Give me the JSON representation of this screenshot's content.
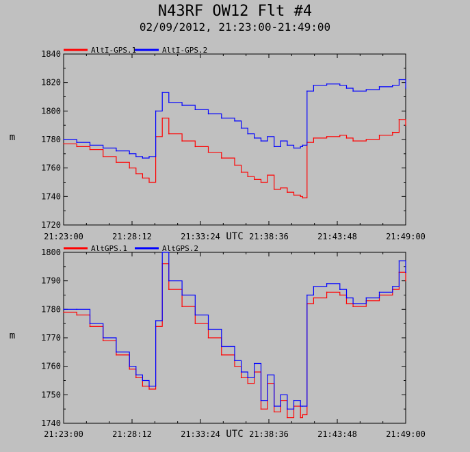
{
  "title": "N43RF OW12 Flt #4",
  "subtitle": "02/09/2012, 21:23:00-21:49:00",
  "colors": {
    "background": "#c0c0c0",
    "series1": "#ff0000",
    "series2": "#0000ff",
    "axis": "#000000"
  },
  "chart_data": [
    {
      "type": "line",
      "xlabel": "UTC",
      "ylabel": "m",
      "xlim": [
        "21:23:00",
        "21:49:00"
      ],
      "xticks": [
        "21:23:00",
        "21:28:12",
        "21:33:24",
        "21:38:36",
        "21:43:48",
        "21:49:00"
      ],
      "ylim": [
        1720,
        1840
      ],
      "yticks": [
        "1720",
        "1740",
        "1760",
        "1780",
        "1800",
        "1820",
        "1840"
      ],
      "grid": false,
      "legend_position": "top-left",
      "series": [
        {
          "name": "AltI-GPS.1",
          "color": "#ff0000",
          "x": [
            "21:23:00",
            "21:24:00",
            "21:25:00",
            "21:26:00",
            "21:27:00",
            "21:28:00",
            "21:28:30",
            "21:29:00",
            "21:29:30",
            "21:30:00",
            "21:30:30",
            "21:31:00",
            "21:32:00",
            "21:33:00",
            "21:34:00",
            "21:35:00",
            "21:36:00",
            "21:36:30",
            "21:37:00",
            "21:37:30",
            "21:38:00",
            "21:38:30",
            "21:39:00",
            "21:39:30",
            "21:40:00",
            "21:40:30",
            "21:41:00",
            "21:41:10",
            "21:41:30",
            "21:42:00",
            "21:43:00",
            "21:44:00",
            "21:44:30",
            "21:45:00",
            "21:46:00",
            "21:47:00",
            "21:48:00",
            "21:48:30",
            "21:49:00"
          ],
          "y": [
            1777,
            1775,
            1773,
            1768,
            1764,
            1760,
            1756,
            1753,
            1750,
            1782,
            1795,
            1784,
            1779,
            1775,
            1771,
            1767,
            1762,
            1757,
            1754,
            1752,
            1750,
            1755,
            1745,
            1746,
            1743,
            1741,
            1740,
            1739,
            1778,
            1781,
            1782,
            1783,
            1781,
            1779,
            1780,
            1783,
            1785,
            1794,
            1790
          ]
        },
        {
          "name": "AltI-GPS.2",
          "color": "#0000ff",
          "x": [
            "21:23:00",
            "21:24:00",
            "21:25:00",
            "21:26:00",
            "21:27:00",
            "21:28:00",
            "21:28:30",
            "21:29:00",
            "21:29:30",
            "21:30:00",
            "21:30:30",
            "21:31:00",
            "21:32:00",
            "21:33:00",
            "21:34:00",
            "21:35:00",
            "21:36:00",
            "21:36:30",
            "21:37:00",
            "21:37:30",
            "21:38:00",
            "21:38:30",
            "21:39:00",
            "21:39:30",
            "21:40:00",
            "21:40:30",
            "21:41:00",
            "21:41:10",
            "21:41:30",
            "21:42:00",
            "21:43:00",
            "21:44:00",
            "21:44:30",
            "21:45:00",
            "21:46:00",
            "21:47:00",
            "21:48:00",
            "21:48:30",
            "21:49:00"
          ],
          "y": [
            1780,
            1778,
            1776,
            1774,
            1772,
            1770,
            1768,
            1767,
            1768,
            1800,
            1813,
            1806,
            1804,
            1801,
            1798,
            1795,
            1793,
            1788,
            1784,
            1781,
            1779,
            1782,
            1775,
            1779,
            1776,
            1774,
            1775,
            1776,
            1814,
            1818,
            1819,
            1818,
            1816,
            1814,
            1815,
            1817,
            1818,
            1822,
            1816
          ]
        }
      ]
    },
    {
      "type": "line",
      "xlabel": "UTC",
      "ylabel": "m",
      "xlim": [
        "21:23:00",
        "21:49:00"
      ],
      "xticks": [
        "21:23:00",
        "21:28:12",
        "21:33:24",
        "21:38:36",
        "21:43:48",
        "21:49:00"
      ],
      "ylim": [
        1740,
        1800
      ],
      "yticks": [
        "1740",
        "1750",
        "1760",
        "1770",
        "1780",
        "1790",
        "1800"
      ],
      "grid": false,
      "legend_position": "top-left",
      "series": [
        {
          "name": "AltGPS.1",
          "color": "#ff0000",
          "x": [
            "21:23:00",
            "21:24:00",
            "21:25:00",
            "21:26:00",
            "21:27:00",
            "21:28:00",
            "21:28:30",
            "21:29:00",
            "21:29:30",
            "21:30:00",
            "21:30:30",
            "21:31:00",
            "21:32:00",
            "21:33:00",
            "21:34:00",
            "21:35:00",
            "21:36:00",
            "21:36:30",
            "21:37:00",
            "21:37:30",
            "21:38:00",
            "21:38:30",
            "21:39:00",
            "21:39:30",
            "21:40:00",
            "21:40:30",
            "21:41:00",
            "21:41:10",
            "21:41:30",
            "21:42:00",
            "21:43:00",
            "21:44:00",
            "21:44:30",
            "21:45:00",
            "21:46:00",
            "21:47:00",
            "21:48:00",
            "21:48:30",
            "21:49:00"
          ],
          "y": [
            1779,
            1778,
            1774,
            1769,
            1764,
            1759,
            1756,
            1753,
            1752,
            1774,
            1796,
            1787,
            1781,
            1775,
            1770,
            1764,
            1760,
            1756,
            1754,
            1758,
            1745,
            1754,
            1744,
            1748,
            1742,
            1746,
            1742,
            1743,
            1782,
            1784,
            1786,
            1785,
            1782,
            1781,
            1783,
            1785,
            1787,
            1793,
            1790
          ]
        },
        {
          "name": "AltGPS.2",
          "color": "#0000ff",
          "x": [
            "21:23:00",
            "21:24:00",
            "21:25:00",
            "21:26:00",
            "21:27:00",
            "21:28:00",
            "21:28:30",
            "21:29:00",
            "21:29:30",
            "21:30:00",
            "21:30:30",
            "21:31:00",
            "21:32:00",
            "21:33:00",
            "21:34:00",
            "21:35:00",
            "21:36:00",
            "21:36:30",
            "21:37:00",
            "21:37:30",
            "21:38:00",
            "21:38:30",
            "21:39:00",
            "21:39:30",
            "21:40:00",
            "21:40:30",
            "21:41:00",
            "21:41:10",
            "21:41:30",
            "21:42:00",
            "21:43:00",
            "21:44:00",
            "21:44:30",
            "21:45:00",
            "21:46:00",
            "21:47:00",
            "21:48:00",
            "21:48:30",
            "21:49:00"
          ],
          "y": [
            1780,
            1780,
            1775,
            1770,
            1765,
            1760,
            1757,
            1755,
            1753,
            1776,
            1800,
            1790,
            1785,
            1778,
            1773,
            1767,
            1762,
            1758,
            1756,
            1761,
            1748,
            1757,
            1746,
            1750,
            1745,
            1748,
            1746,
            1746,
            1785,
            1788,
            1789,
            1787,
            1784,
            1782,
            1784,
            1786,
            1788,
            1797,
            1793
          ]
        }
      ]
    }
  ]
}
